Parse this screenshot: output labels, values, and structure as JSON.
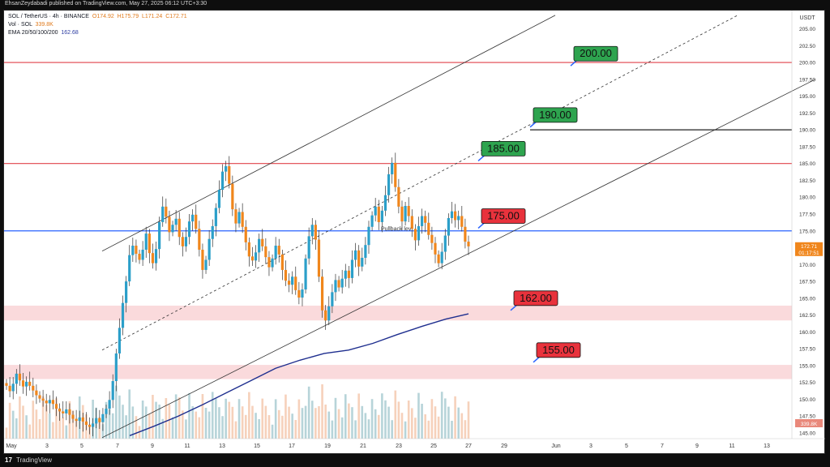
{
  "header": {
    "published": "EhsanZeydabadi published on TradingView.com, May 27, 2025 06:12 UTC+3:30"
  },
  "legend": {
    "symbol": "SOL / TetherUS · 4h · BINANCE",
    "open": "O174.92",
    "high": "H175.79",
    "low": "L171.24",
    "close": "C172.71",
    "vol_label": "Vol · SOL",
    "vol_value": "339.8K",
    "ema_label": "EMA 20/50/100/200",
    "ema_value": "162.68"
  },
  "footer": {
    "logo": "17",
    "brand": "TradingView"
  },
  "colors": {
    "up": "#26a69a",
    "up_body": "#2b9fc9",
    "down": "#f0861c",
    "ema": "#1f2f8f",
    "red_line": "#e0424a",
    "blue_line": "#2962ff",
    "zone": "#f9d3d6",
    "label_green": "#2ea44f",
    "label_red": "#e8323c"
  },
  "chart_data": {
    "type": "candlestick",
    "currency": "USDT",
    "ylim": [
      144,
      207
    ],
    "price_ticks": [
      "205.00",
      "202.50",
      "200.00",
      "197.50",
      "195.00",
      "192.50",
      "190.00",
      "187.50",
      "185.00",
      "182.50",
      "180.00",
      "177.50",
      "175.00",
      "172.50",
      "170.00",
      "167.50",
      "165.00",
      "162.50",
      "160.00",
      "157.50",
      "155.00",
      "152.50",
      "150.00",
      "147.50",
      "145.00"
    ],
    "x_ticks": [
      "May",
      "3",
      "5",
      "7",
      "9",
      "11",
      "13",
      "15",
      "17",
      "19",
      "21",
      "23",
      "25",
      "27",
      "29",
      "Jun",
      "3",
      "5",
      "7",
      "9",
      "11",
      "13"
    ],
    "last_price": "172.71",
    "countdown": "01:17:51",
    "volume_label": "339.8K",
    "annotation": "Pullback lev",
    "horizontal_lines": [
      {
        "price": 200.0,
        "color": "red"
      },
      {
        "price": 190.0,
        "color": "black"
      },
      {
        "price": 185.0,
        "color": "red"
      },
      {
        "price": 175.0,
        "color": "blue"
      }
    ],
    "zones": [
      {
        "from": 161.7,
        "to": 163.9
      },
      {
        "from": 153.0,
        "to": 155.1
      }
    ],
    "level_labels": [
      {
        "text": "200.00",
        "price": 201.3,
        "style": "green"
      },
      {
        "text": "190.00",
        "price": 192.2,
        "style": "green"
      },
      {
        "text": "185.00",
        "price": 187.2,
        "style": "green"
      },
      {
        "text": "175.00",
        "price": 177.2,
        "style": "red"
      },
      {
        "text": "162.00",
        "price": 165.0,
        "style": "red"
      },
      {
        "text": "155.00",
        "price": 157.3,
        "style": "red"
      }
    ],
    "candles_close": [
      152.0,
      151.2,
      152.3,
      153.8,
      152.8,
      151.9,
      152.6,
      152.0,
      151.3,
      150.6,
      150.1,
      149.8,
      149.4,
      149.9,
      149.3,
      148.6,
      148.2,
      147.9,
      148.5,
      147.7,
      147.1,
      146.8,
      147.3,
      146.7,
      146.2,
      145.9,
      146.4,
      147.2,
      146.6,
      147.8,
      148.6,
      149.9,
      152.7,
      156.8,
      160.6,
      164.3,
      167.5,
      171.4,
      172.8,
      171.6,
      170.7,
      172.2,
      174.6,
      171.7,
      170.2,
      172.3,
      176.3,
      178.6,
      177.1,
      174.8,
      175.9,
      176.8,
      174.1,
      172.7,
      174.1,
      176.4,
      177.4,
      175.3,
      172.2,
      169.2,
      170.7,
      173.8,
      175.7,
      178.4,
      181.1,
      183.8,
      184.6,
      182.0,
      178.2,
      176.1,
      177.8,
      175.6,
      173.3,
      171.2,
      170.6,
      171.8,
      173.8,
      172.7,
      171.1,
      169.6,
      170.9,
      172.8,
      171.5,
      169.2,
      167.6,
      167.0,
      168.2,
      166.2,
      165.1,
      166.3,
      170.9,
      174.2,
      175.9,
      173.7,
      168.2,
      163.2,
      161.7,
      163.8,
      165.9,
      167.7,
      166.6,
      167.9,
      169.1,
      168.0,
      170.7,
      172.1,
      169.7,
      171.0,
      172.9,
      175.6,
      177.3,
      178.6,
      176.3,
      178.0,
      180.3,
      183.4,
      185.1,
      181.5,
      178.6,
      176.4,
      178.7,
      177.2,
      175.3,
      173.6,
      175.7,
      177.2,
      176.2,
      174.4,
      173.2,
      171.5,
      170.2,
      171.9,
      174.3,
      176.9,
      177.9,
      176.6,
      177.2,
      175.6,
      173.4,
      172.7
    ],
    "ema_points": [
      [
        160,
        144.6
      ],
      [
        190,
        146.0
      ],
      [
        220,
        147.5
      ],
      [
        250,
        149.2
      ],
      [
        280,
        151.0
      ],
      [
        310,
        152.8
      ],
      [
        340,
        154.6
      ],
      [
        370,
        155.8
      ],
      [
        400,
        156.8
      ],
      [
        430,
        157.3
      ],
      [
        460,
        158.3
      ],
      [
        490,
        159.6
      ],
      [
        520,
        160.8
      ],
      [
        550,
        161.9
      ],
      [
        578,
        162.68
      ]
    ],
    "channel_lines": [
      {
        "from": [
          126,
          172.0
        ],
        "to": [
          685,
          207.0
        ],
        "style": "solid"
      },
      {
        "from": [
          126,
          157.3
        ],
        "to": [
          910,
          207.0
        ],
        "style": "dashed"
      },
      {
        "from": [
          126,
          144.3
        ],
        "to": [
          1006,
          197.5
        ],
        "style": "solid"
      }
    ]
  }
}
